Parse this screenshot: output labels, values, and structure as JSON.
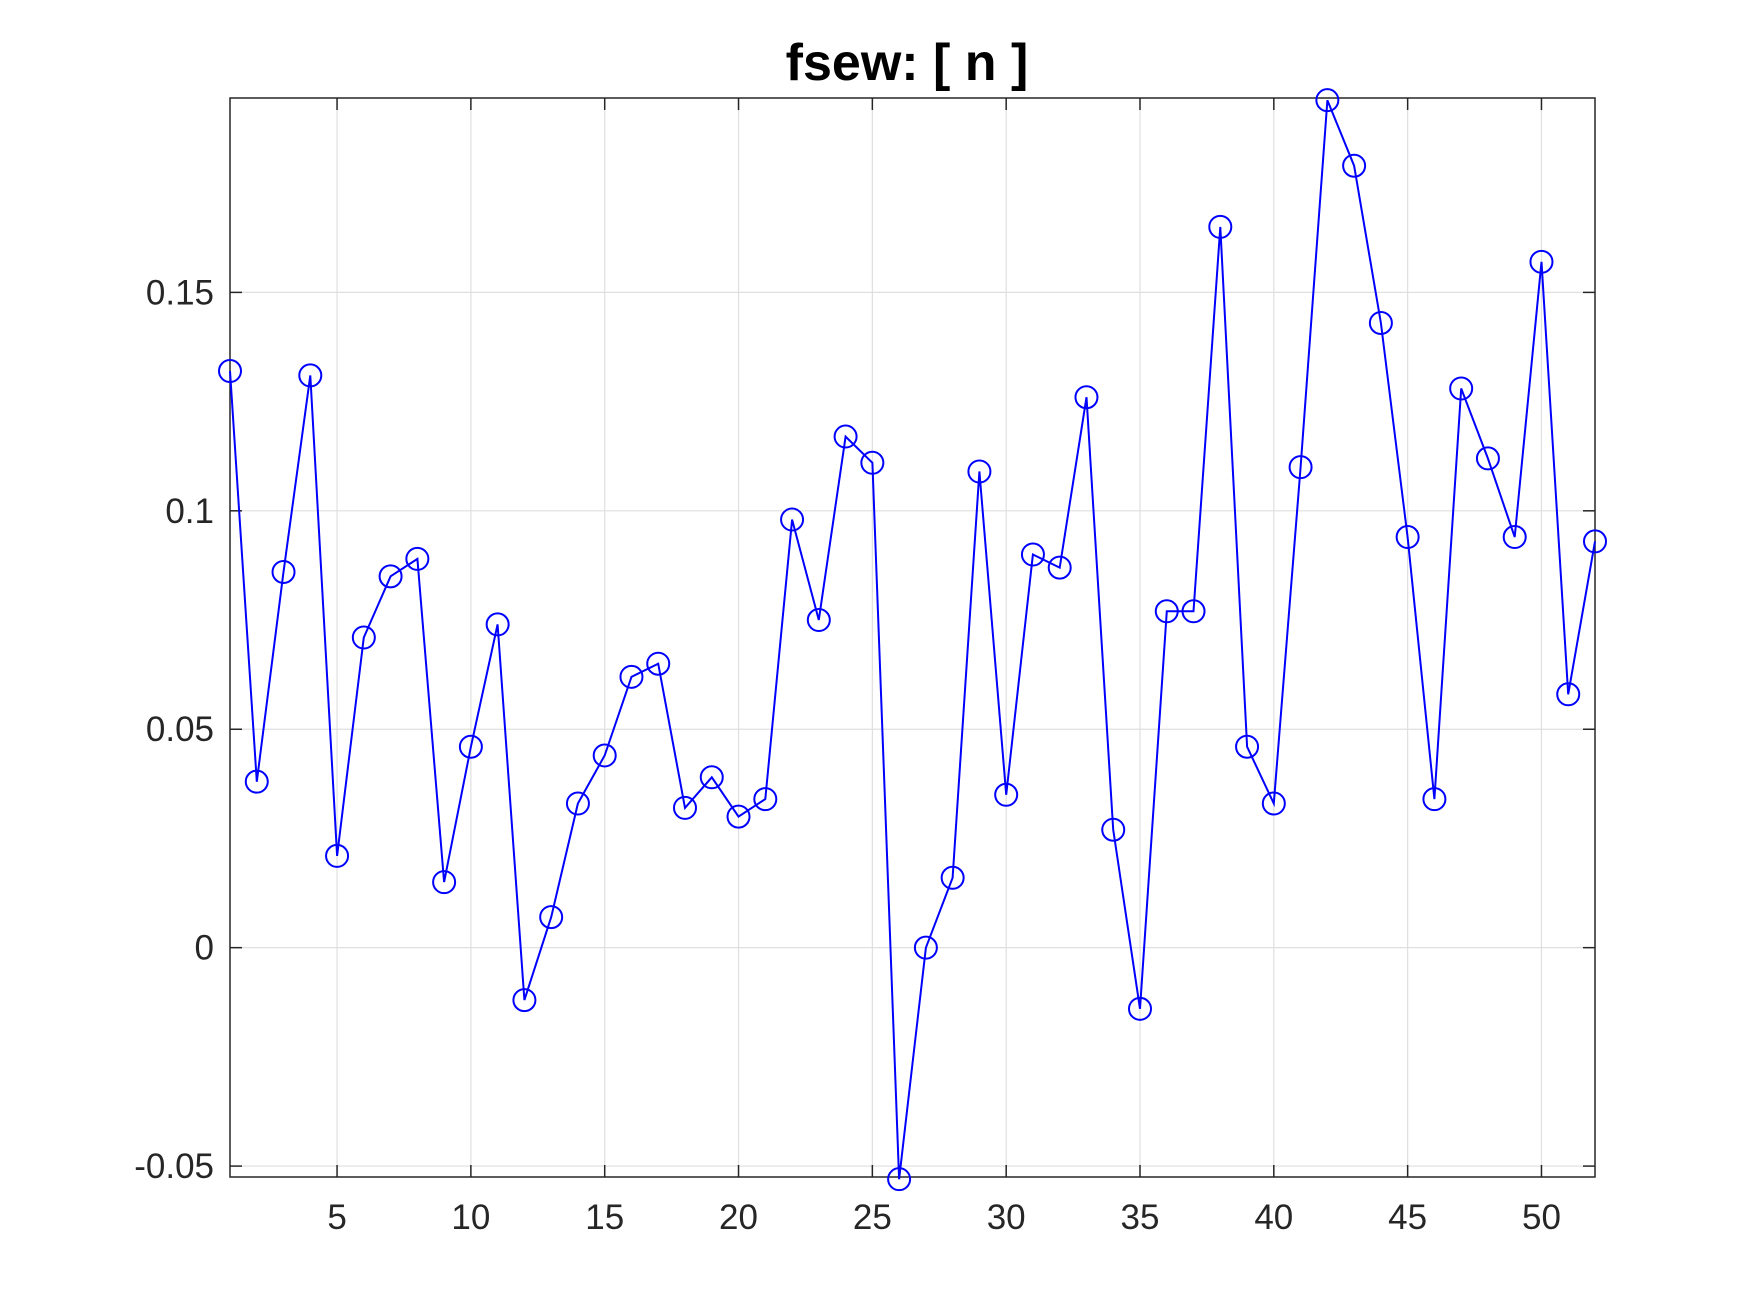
{
  "chart_data": {
    "type": "line",
    "title": "fsew: [ n ]",
    "xlabel": "",
    "ylabel": "",
    "xlim": [
      1,
      52
    ],
    "ylim": [
      -0.0525,
      0.1945
    ],
    "xticks": [
      5,
      10,
      15,
      20,
      25,
      30,
      35,
      40,
      45,
      50
    ],
    "xtick_labels": [
      "5",
      "10",
      "15",
      "20",
      "25",
      "30",
      "35",
      "40",
      "45",
      "50"
    ],
    "yticks": [
      -0.05,
      0,
      0.05,
      0.1,
      0.15
    ],
    "ytick_labels": [
      "-0.05",
      "0",
      "0.05",
      "0.1",
      "0.15"
    ],
    "grid": true,
    "legend": "none",
    "colors": {
      "series": "#0000ff",
      "grid": "#dfdfdf",
      "axes": "#262626"
    },
    "series": [
      {
        "marker": "circle",
        "x": [
          1,
          2,
          3,
          4,
          5,
          6,
          7,
          8,
          9,
          10,
          11,
          12,
          13,
          14,
          15,
          16,
          17,
          18,
          19,
          20,
          21,
          22,
          23,
          24,
          25,
          26,
          27,
          28,
          29,
          30,
          31,
          32,
          33,
          34,
          35,
          36,
          37,
          38,
          39,
          40,
          41,
          42,
          43,
          44,
          45,
          46,
          47,
          48,
          49,
          50,
          51,
          52
        ],
        "values": [
          0.132,
          0.038,
          0.086,
          0.131,
          0.021,
          0.071,
          0.085,
          0.089,
          0.015,
          0.046,
          0.074,
          -0.012,
          0.007,
          0.033,
          0.044,
          0.062,
          0.065,
          0.032,
          0.039,
          0.03,
          0.034,
          0.098,
          0.075,
          0.117,
          0.111,
          -0.053,
          0.0,
          0.016,
          0.109,
          0.035,
          0.09,
          0.087,
          0.126,
          0.027,
          -0.014,
          0.077,
          0.077,
          0.165,
          0.046,
          0.033,
          0.11,
          0.194,
          0.179,
          0.143,
          0.094,
          0.034,
          0.128,
          0.112,
          0.094,
          0.157,
          0.058,
          0.093
        ]
      }
    ]
  }
}
